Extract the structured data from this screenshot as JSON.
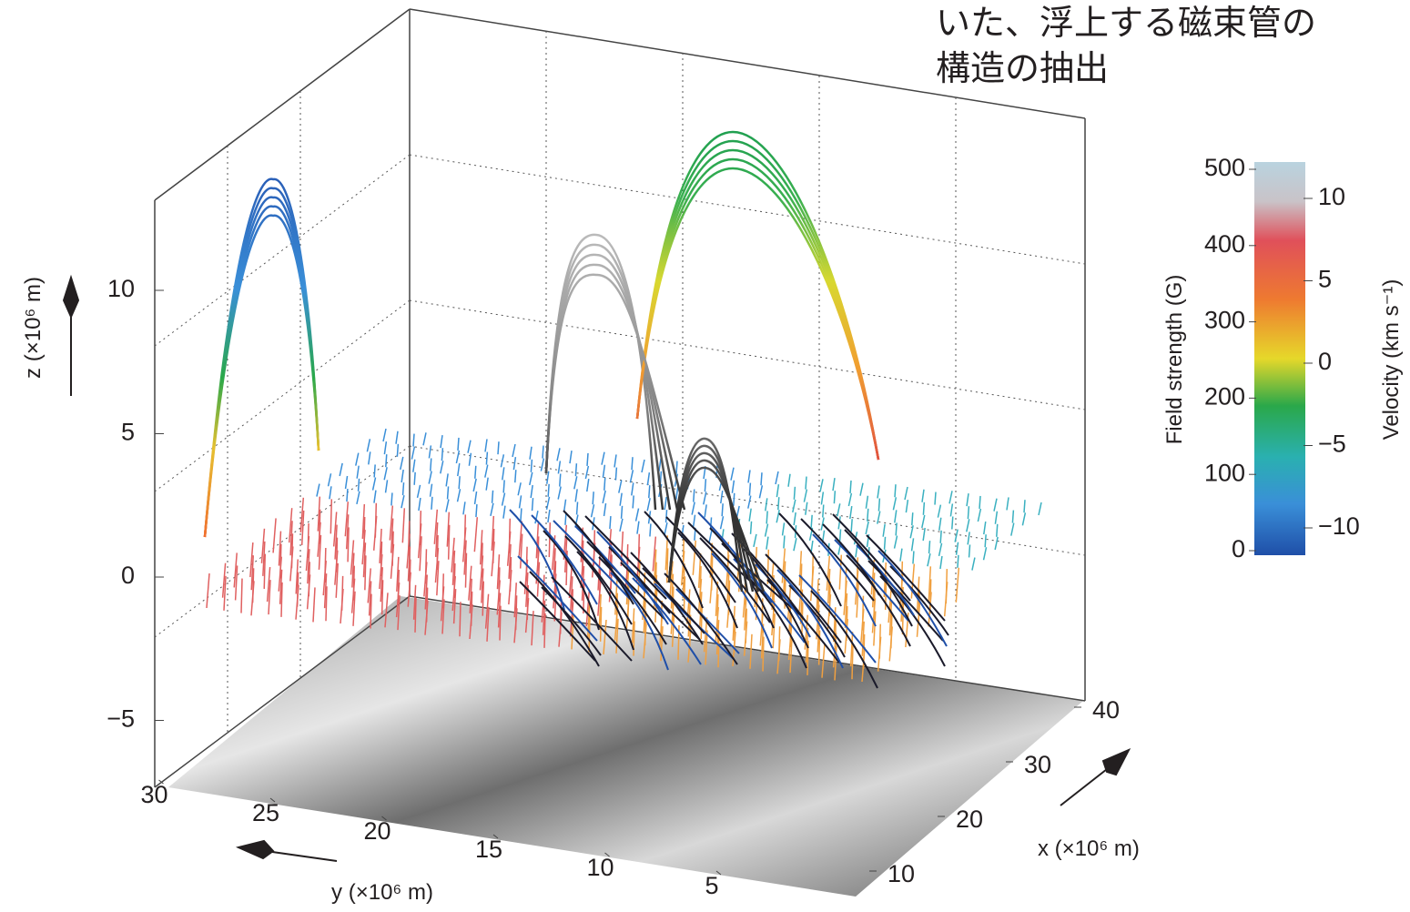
{
  "caption": [
    "いた、浮上する磁束管の",
    "構造の抽出"
  ],
  "axes": {
    "z": {
      "label": "z (×10⁶ m)",
      "ticks": [
        {
          "value": -5,
          "label": "−5"
        },
        0,
        5,
        10
      ]
    },
    "y": {
      "label": "y (×10⁶ m)",
      "ticks": [
        30,
        25,
        20,
        15,
        10,
        5
      ]
    },
    "x": {
      "label": "x (×10⁶ m)",
      "ticks": [
        10,
        20,
        30,
        40
      ]
    }
  },
  "colorbar": {
    "left_label": "Field strength (G)",
    "left_ticks": [
      0,
      100,
      200,
      300,
      400,
      500
    ],
    "right_label": "Velocity (km s⁻¹)",
    "right_ticks": [
      10,
      5,
      0,
      {
        "value": -5,
        "label": "−5"
      },
      {
        "value": -10,
        "label": "−10"
      }
    ]
  }
}
